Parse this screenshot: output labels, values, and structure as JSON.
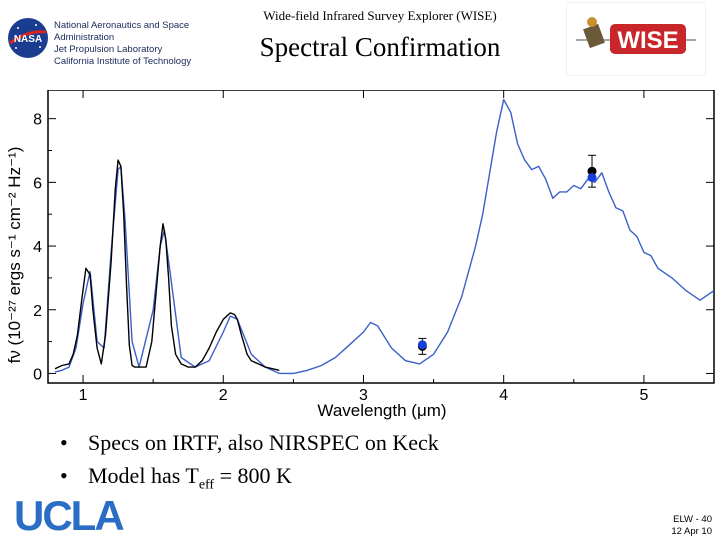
{
  "header": {
    "institution_lines": [
      "National Aeronautics and Space",
      "Administration",
      "Jet Propulsion Laboratory",
      "California Institute of Technology"
    ],
    "survey_title": "Wide-field Infrared Survey Explorer (WISE)",
    "slide_title": "Spectral Confirmation",
    "nasa_logo_text": "NASA",
    "wise_logo_text": "WISE"
  },
  "chart_data": {
    "type": "line",
    "xlabel": "Wavelength (μm)",
    "ylabel": "fν (10⁻²⁷ ergs s⁻¹ cm⁻² Hz⁻¹)",
    "xlim": [
      0.75,
      5.5
    ],
    "ylim": [
      -0.3,
      8.9
    ],
    "x_ticks": [
      "1",
      "2",
      "3",
      "4",
      "5"
    ],
    "y_ticks": [
      "0",
      "2",
      "4",
      "6",
      "8"
    ],
    "series": [
      {
        "color": "#000000",
        "x": [
          0.8,
          0.85,
          0.9,
          0.93,
          0.96,
          0.99,
          1.02,
          1.05,
          1.07,
          1.1,
          1.13,
          1.16,
          1.2,
          1.23,
          1.25,
          1.27,
          1.29,
          1.31,
          1.33,
          1.35,
          1.37,
          1.4,
          1.45,
          1.49,
          1.52,
          1.55,
          1.57,
          1.59,
          1.61,
          1.63,
          1.66,
          1.7,
          1.75,
          1.8,
          1.85,
          1.9,
          1.95,
          2.0,
          2.05,
          2.08,
          2.1,
          2.13,
          2.17,
          2.2,
          2.25,
          2.3,
          2.35,
          2.4
        ],
        "y": [
          0.15,
          0.25,
          0.3,
          0.6,
          1.2,
          2.3,
          3.3,
          3.1,
          2.0,
          0.8,
          0.3,
          1.2,
          3.5,
          5.8,
          6.7,
          6.5,
          5.0,
          2.8,
          0.9,
          0.25,
          0.2,
          0.2,
          0.2,
          1.0,
          2.5,
          4.0,
          4.7,
          4.2,
          3.0,
          1.5,
          0.6,
          0.3,
          0.2,
          0.2,
          0.4,
          0.8,
          1.3,
          1.7,
          1.9,
          1.85,
          1.7,
          1.2,
          0.6,
          0.4,
          0.3,
          0.2,
          0.15,
          0.1
        ]
      },
      {
        "color": "#3a5fc8",
        "x": [
          0.8,
          0.85,
          0.9,
          0.95,
          1.0,
          1.05,
          1.1,
          1.15,
          1.2,
          1.25,
          1.27,
          1.3,
          1.35,
          1.4,
          1.5,
          1.55,
          1.58,
          1.62,
          1.7,
          1.8,
          1.9,
          2.0,
          2.05,
          2.1,
          2.2,
          2.3,
          2.4,
          2.5,
          2.6,
          2.7,
          2.8,
          2.9,
          3.0,
          3.05,
          3.1,
          3.2,
          3.3,
          3.4,
          3.5,
          3.6,
          3.7,
          3.8,
          3.85,
          3.9,
          3.95,
          4.0,
          4.05,
          4.1,
          4.15,
          4.2,
          4.25,
          4.3,
          4.35,
          4.4,
          4.45,
          4.5,
          4.55,
          4.6,
          4.65,
          4.7,
          4.75,
          4.8,
          4.85,
          4.9,
          4.95,
          5.0,
          5.05,
          5.1,
          5.2,
          5.3,
          5.4,
          5.5
        ],
        "y": [
          0.05,
          0.1,
          0.2,
          0.8,
          2.2,
          3.2,
          1.0,
          0.8,
          3.8,
          6.4,
          6.5,
          4.8,
          1.0,
          0.2,
          2.0,
          4.0,
          4.5,
          3.2,
          0.5,
          0.2,
          0.4,
          1.3,
          1.8,
          1.7,
          0.6,
          0.2,
          0.0,
          0.0,
          0.1,
          0.25,
          0.5,
          0.9,
          1.3,
          1.6,
          1.5,
          0.8,
          0.4,
          0.3,
          0.6,
          1.3,
          2.4,
          4.0,
          5.0,
          6.3,
          7.6,
          8.6,
          8.2,
          7.2,
          6.7,
          6.4,
          6.5,
          6.1,
          5.5,
          5.7,
          5.7,
          5.9,
          5.8,
          6.1,
          6.0,
          6.3,
          5.7,
          5.2,
          5.1,
          4.5,
          4.3,
          3.8,
          3.7,
          3.3,
          3.0,
          2.6,
          2.3,
          2.6
        ]
      }
    ],
    "points": [
      {
        "x": 3.42,
        "y": 0.85,
        "yerr": 0.25,
        "color": "#000000"
      },
      {
        "x": 3.42,
        "y": 0.9,
        "yerr": 0.0,
        "color": "#1a3fd8"
      },
      {
        "x": 4.63,
        "y": 6.35,
        "yerr": 0.5,
        "color": "#000000"
      },
      {
        "x": 4.63,
        "y": 6.15,
        "yerr": 0.0,
        "color": "#1a3fd8"
      }
    ],
    "grid": false
  },
  "bullets": [
    {
      "text": "Specs on IRTF, also NIRSPEC on Keck"
    },
    {
      "text_before": "Model has T",
      "sub": "eff",
      "text_after": " = 800 K"
    }
  ],
  "footer": {
    "logo_text": "UCLA",
    "slide_id": "ELW - 40",
    "date": "12 Apr 10"
  }
}
